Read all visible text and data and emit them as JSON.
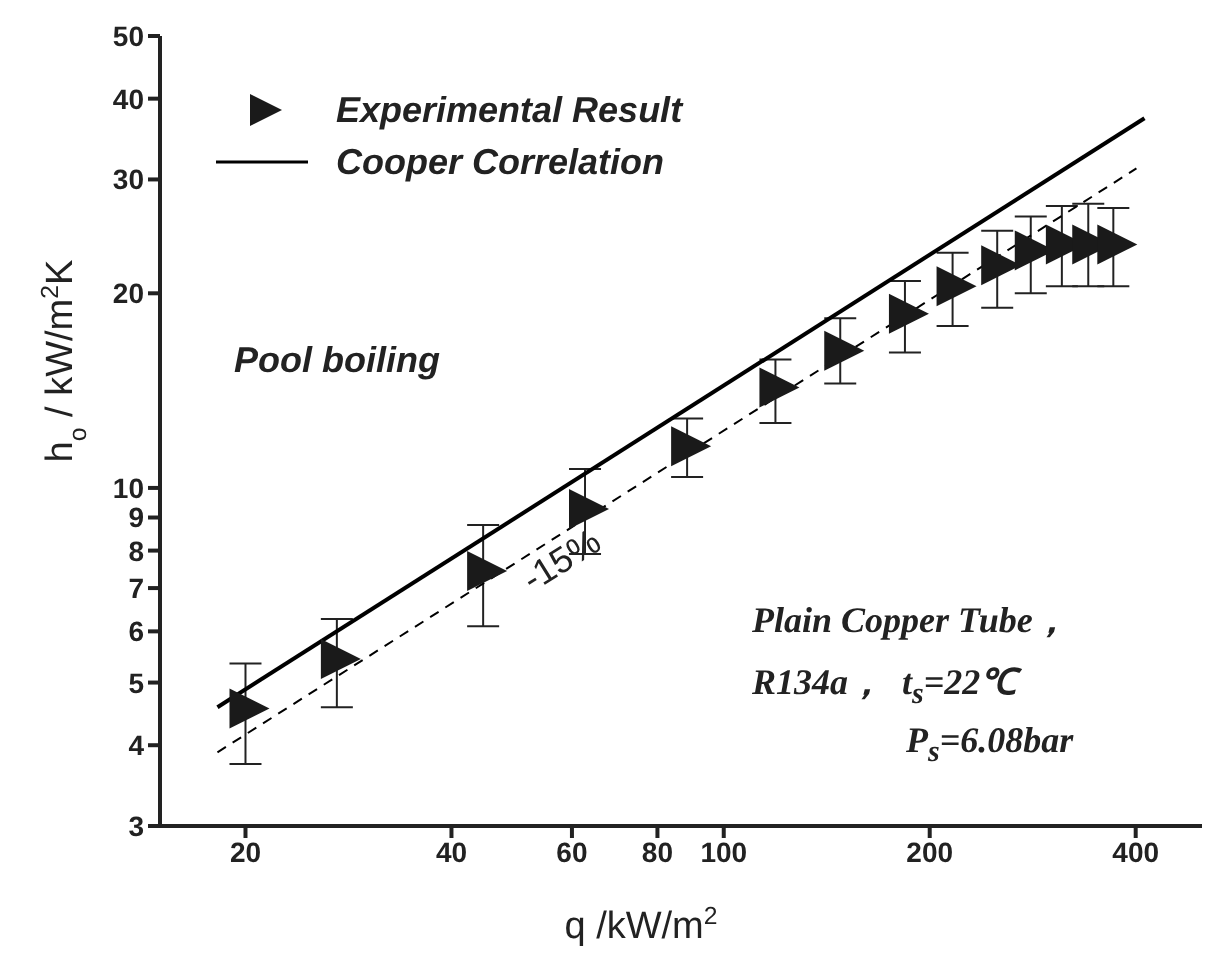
{
  "chart_data": {
    "type": "scatter",
    "xlabel": "q /kW/m$^{2}$",
    "ylabel": "h$_{o}$ / kW/m$^{2}$K",
    "log": "xy",
    "xlim": [
      15,
      500
    ],
    "xticks": [
      20,
      40,
      60,
      80,
      100,
      200,
      400
    ],
    "ylim": [
      3,
      50
    ],
    "yticks": [
      3,
      4,
      5,
      6,
      7,
      8,
      9,
      10,
      20,
      30,
      40,
      50
    ],
    "legend": "top left",
    "series": [
      {
        "name": "Experimental Result",
        "marker": "triangle",
        "color": "#1a1a1a",
        "x": [
          20,
          27.2,
          44.5,
          62.7,
          88.4,
          119,
          148,
          184,
          216,
          251,
          281,
          312,
          341,
          371
        ],
        "values": [
          4.56,
          5.44,
          7.44,
          9.28,
          11.6,
          14.3,
          16.3,
          18.6,
          20.5,
          22.1,
          23.3,
          23.8,
          23.8,
          23.8
        ],
        "errors": [
          [
            3.74,
            5.35
          ],
          [
            4.58,
            6.27
          ],
          [
            6.11,
            8.76
          ],
          [
            7.9,
            10.7
          ],
          [
            10.4,
            12.8
          ],
          [
            12.6,
            15.8
          ],
          [
            14.5,
            18.3
          ],
          [
            16.2,
            20.9
          ],
          [
            17.8,
            23.1
          ],
          [
            19.0,
            25.0
          ],
          [
            20.0,
            26.3
          ],
          [
            20.5,
            27.3
          ],
          [
            20.5,
            27.5
          ],
          [
            20.5,
            27.1
          ]
        ]
      },
      {
        "name": "Cooper Correlation",
        "type": "line",
        "marker": "none",
        "line_style": "solid",
        "color": "#000000",
        "x": [
          18.2,
          412
        ],
        "values": [
          4.58,
          37.3
        ]
      },
      {
        "type": "line",
        "marker": "none",
        "line_style": "dashed",
        "color": "#000000",
        "x": [
          18.2,
          401
        ],
        "values": [
          3.9,
          31.2
        ]
      }
    ],
    "annotations": [
      "-15%",
      "Pool boiling",
      "Plain Copper Tube，",
      "R134a，  t$_{s}$=22℃",
      "P$_{s}$=6.08bar"
    ]
  }
}
